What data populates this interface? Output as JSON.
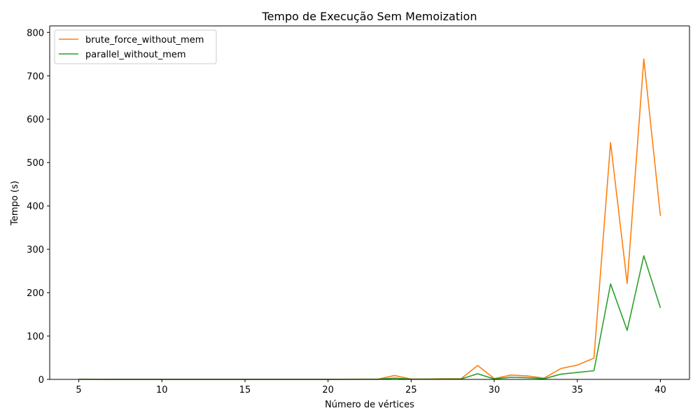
{
  "chart_data": {
    "type": "line",
    "title": "Tempo de Execução Sem Memoization",
    "xlabel": "Número de vértices",
    "ylabel": "Tempo (s)",
    "xlim": [
      3.25,
      41.75
    ],
    "ylim": [
      0,
      815
    ],
    "x_ticks": [
      5,
      10,
      15,
      20,
      25,
      30,
      35,
      40
    ],
    "y_ticks": [
      0,
      100,
      200,
      300,
      400,
      500,
      600,
      700,
      800
    ],
    "grid": false,
    "legend_position": "top-left",
    "x": [
      5,
      6,
      7,
      8,
      9,
      10,
      11,
      12,
      13,
      14,
      15,
      16,
      17,
      18,
      19,
      20,
      21,
      22,
      23,
      24,
      25,
      26,
      27,
      28,
      29,
      30,
      31,
      32,
      33,
      34,
      35,
      36,
      37,
      38,
      39,
      40
    ],
    "series": [
      {
        "name": "brute_force_without_mem",
        "color": "#ff7f0e",
        "values": [
          0.5,
          0.3,
          0.2,
          0.2,
          0.2,
          0.2,
          0.2,
          0.2,
          0.2,
          0.2,
          0.2,
          0.2,
          0.2,
          0.2,
          0.2,
          0.3,
          0.3,
          0.5,
          0.5,
          9,
          0.8,
          1,
          1.5,
          1.5,
          32,
          2,
          10,
          8,
          3,
          25,
          33,
          49,
          546,
          221,
          739,
          377
        ]
      },
      {
        "name": "parallel_without_mem",
        "color": "#2ca02c",
        "values": [
          0.3,
          0.2,
          0.1,
          0.1,
          0.1,
          0.1,
          0.1,
          0.1,
          0.1,
          0.1,
          0.1,
          0.1,
          0.1,
          0.1,
          0.1,
          0.1,
          0.2,
          0.3,
          0.3,
          3,
          0.5,
          0.5,
          0.8,
          0.8,
          13,
          1,
          5,
          4,
          1.5,
          12,
          16,
          20,
          220,
          113,
          285,
          165
        ]
      }
    ]
  }
}
